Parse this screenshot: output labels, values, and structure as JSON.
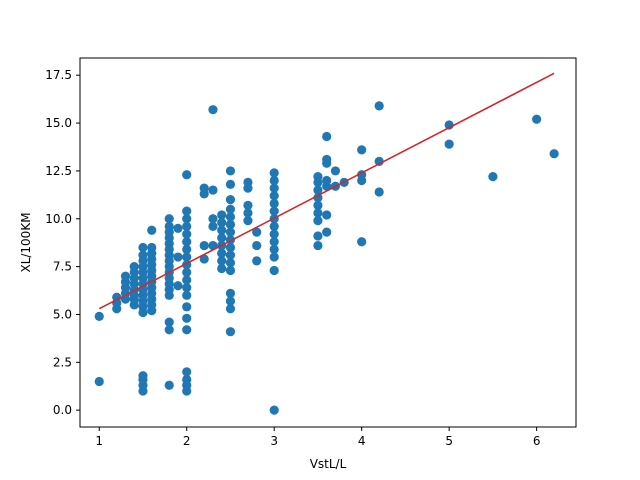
{
  "chart_data": {
    "type": "scatter",
    "xlabel": "VstL/L",
    "ylabel": "XL/100KM",
    "xlim": [
      0.78,
      6.45
    ],
    "ylim": [
      -0.88,
      18.4
    ],
    "xticks": [
      1,
      2,
      3,
      4,
      5,
      6
    ],
    "yticks": [
      0.0,
      2.5,
      5.0,
      7.5,
      10.0,
      12.5,
      15.0,
      17.5
    ],
    "ytick_labels": [
      "0.0",
      "2.5",
      "5.0",
      "7.5",
      "10.0",
      "12.5",
      "15.0",
      "17.5"
    ],
    "grid": false,
    "colors": {
      "points": "#1f77b4",
      "fit_line": "#d62728"
    },
    "fit_line": {
      "x": [
        1.0,
        6.2
      ],
      "y": [
        5.3,
        17.6
      ]
    },
    "series": [
      {
        "points": [
          [
            1.0,
            4.9
          ],
          [
            1.0,
            1.5
          ],
          [
            1.2,
            5.3
          ],
          [
            1.2,
            5.6
          ],
          [
            1.2,
            5.9
          ],
          [
            1.3,
            5.8
          ],
          [
            1.3,
            6.1
          ],
          [
            1.3,
            6.4
          ],
          [
            1.3,
            6.7
          ],
          [
            1.3,
            7.0
          ],
          [
            1.4,
            5.5
          ],
          [
            1.4,
            5.8
          ],
          [
            1.4,
            6.0
          ],
          [
            1.4,
            6.3
          ],
          [
            1.4,
            6.6
          ],
          [
            1.4,
            6.9
          ],
          [
            1.4,
            7.2
          ],
          [
            1.4,
            7.5
          ],
          [
            1.5,
            5.1
          ],
          [
            1.5,
            5.4
          ],
          [
            1.5,
            5.7
          ],
          [
            1.5,
            6.0
          ],
          [
            1.5,
            6.3
          ],
          [
            1.5,
            6.6
          ],
          [
            1.5,
            6.9
          ],
          [
            1.5,
            7.2
          ],
          [
            1.5,
            7.5
          ],
          [
            1.5,
            7.8
          ],
          [
            1.5,
            8.1
          ],
          [
            1.5,
            8.5
          ],
          [
            1.5,
            1.0
          ],
          [
            1.5,
            1.3
          ],
          [
            1.5,
            1.6
          ],
          [
            1.5,
            1.8
          ],
          [
            1.6,
            5.2
          ],
          [
            1.6,
            5.5
          ],
          [
            1.6,
            5.8
          ],
          [
            1.6,
            6.1
          ],
          [
            1.6,
            6.4
          ],
          [
            1.6,
            6.7
          ],
          [
            1.6,
            7.0
          ],
          [
            1.6,
            7.3
          ],
          [
            1.6,
            7.6
          ],
          [
            1.6,
            7.9
          ],
          [
            1.6,
            8.2
          ],
          [
            1.6,
            8.5
          ],
          [
            1.6,
            9.4
          ],
          [
            1.8,
            4.2
          ],
          [
            1.8,
            4.6
          ],
          [
            1.8,
            6.0
          ],
          [
            1.8,
            6.3
          ],
          [
            1.8,
            6.6
          ],
          [
            1.8,
            6.9
          ],
          [
            1.8,
            7.2
          ],
          [
            1.8,
            7.5
          ],
          [
            1.8,
            7.8
          ],
          [
            1.8,
            8.1
          ],
          [
            1.8,
            8.4
          ],
          [
            1.8,
            8.7
          ],
          [
            1.8,
            9.0
          ],
          [
            1.8,
            9.3
          ],
          [
            1.8,
            9.6
          ],
          [
            1.8,
            10.0
          ],
          [
            1.8,
            1.3
          ],
          [
            1.9,
            6.5
          ],
          [
            1.9,
            8.0
          ],
          [
            1.9,
            9.5
          ],
          [
            2.0,
            1.0
          ],
          [
            2.0,
            1.3
          ],
          [
            2.0,
            1.6
          ],
          [
            2.0,
            2.0
          ],
          [
            2.0,
            4.2
          ],
          [
            2.0,
            4.8
          ],
          [
            2.0,
            5.4
          ],
          [
            2.0,
            6.0
          ],
          [
            2.0,
            6.4
          ],
          [
            2.0,
            6.8
          ],
          [
            2.0,
            7.2
          ],
          [
            2.0,
            7.6
          ],
          [
            2.0,
            8.0
          ],
          [
            2.0,
            8.4
          ],
          [
            2.0,
            8.8
          ],
          [
            2.0,
            9.2
          ],
          [
            2.0,
            9.6
          ],
          [
            2.0,
            10.0
          ],
          [
            2.0,
            10.4
          ],
          [
            2.0,
            12.3
          ],
          [
            2.2,
            7.9
          ],
          [
            2.2,
            8.6
          ],
          [
            2.2,
            11.3
          ],
          [
            2.2,
            11.6
          ],
          [
            2.3,
            8.6
          ],
          [
            2.3,
            9.6
          ],
          [
            2.3,
            10.0
          ],
          [
            2.3,
            11.5
          ],
          [
            2.3,
            15.7
          ],
          [
            2.4,
            7.4
          ],
          [
            2.4,
            7.8
          ],
          [
            2.4,
            8.2
          ],
          [
            2.4,
            8.6
          ],
          [
            2.4,
            9.0
          ],
          [
            2.4,
            9.4
          ],
          [
            2.4,
            9.8
          ],
          [
            2.4,
            10.2
          ],
          [
            2.5,
            4.1
          ],
          [
            2.5,
            5.3
          ],
          [
            2.5,
            5.7
          ],
          [
            2.5,
            6.1
          ],
          [
            2.5,
            7.3
          ],
          [
            2.5,
            7.7
          ],
          [
            2.5,
            8.1
          ],
          [
            2.5,
            8.5
          ],
          [
            2.5,
            8.9
          ],
          [
            2.5,
            9.3
          ],
          [
            2.5,
            9.7
          ],
          [
            2.5,
            10.1
          ],
          [
            2.5,
            10.5
          ],
          [
            2.5,
            11.0
          ],
          [
            2.5,
            11.8
          ],
          [
            2.5,
            12.5
          ],
          [
            2.7,
            9.9
          ],
          [
            2.7,
            10.3
          ],
          [
            2.7,
            10.7
          ],
          [
            2.7,
            11.6
          ],
          [
            2.7,
            11.9
          ],
          [
            2.8,
            7.8
          ],
          [
            2.8,
            8.6
          ],
          [
            2.8,
            9.3
          ],
          [
            3.0,
            0.0
          ],
          [
            3.0,
            7.3
          ],
          [
            3.0,
            8.0
          ],
          [
            3.0,
            8.4
          ],
          [
            3.0,
            8.8
          ],
          [
            3.0,
            9.2
          ],
          [
            3.0,
            9.6
          ],
          [
            3.0,
            10.0
          ],
          [
            3.0,
            10.4
          ],
          [
            3.0,
            10.8
          ],
          [
            3.0,
            11.2
          ],
          [
            3.0,
            11.6
          ],
          [
            3.0,
            12.0
          ],
          [
            3.0,
            12.4
          ],
          [
            3.5,
            8.6
          ],
          [
            3.5,
            9.1
          ],
          [
            3.5,
            9.9
          ],
          [
            3.5,
            10.3
          ],
          [
            3.5,
            10.7
          ],
          [
            3.5,
            11.1
          ],
          [
            3.5,
            11.5
          ],
          [
            3.5,
            11.9
          ],
          [
            3.5,
            12.2
          ],
          [
            3.6,
            9.3
          ],
          [
            3.6,
            10.2
          ],
          [
            3.6,
            11.7
          ],
          [
            3.6,
            12.0
          ],
          [
            3.6,
            12.9
          ],
          [
            3.6,
            13.1
          ],
          [
            3.6,
            14.3
          ],
          [
            3.7,
            11.7
          ],
          [
            3.7,
            12.5
          ],
          [
            3.8,
            11.9
          ],
          [
            4.0,
            8.8
          ],
          [
            4.0,
            12.0
          ],
          [
            4.0,
            12.3
          ],
          [
            4.0,
            13.6
          ],
          [
            4.2,
            11.4
          ],
          [
            4.2,
            13.0
          ],
          [
            4.2,
            15.9
          ],
          [
            5.0,
            13.9
          ],
          [
            5.0,
            14.9
          ],
          [
            5.5,
            12.2
          ],
          [
            6.0,
            15.2
          ],
          [
            6.2,
            13.4
          ]
        ]
      }
    ]
  }
}
